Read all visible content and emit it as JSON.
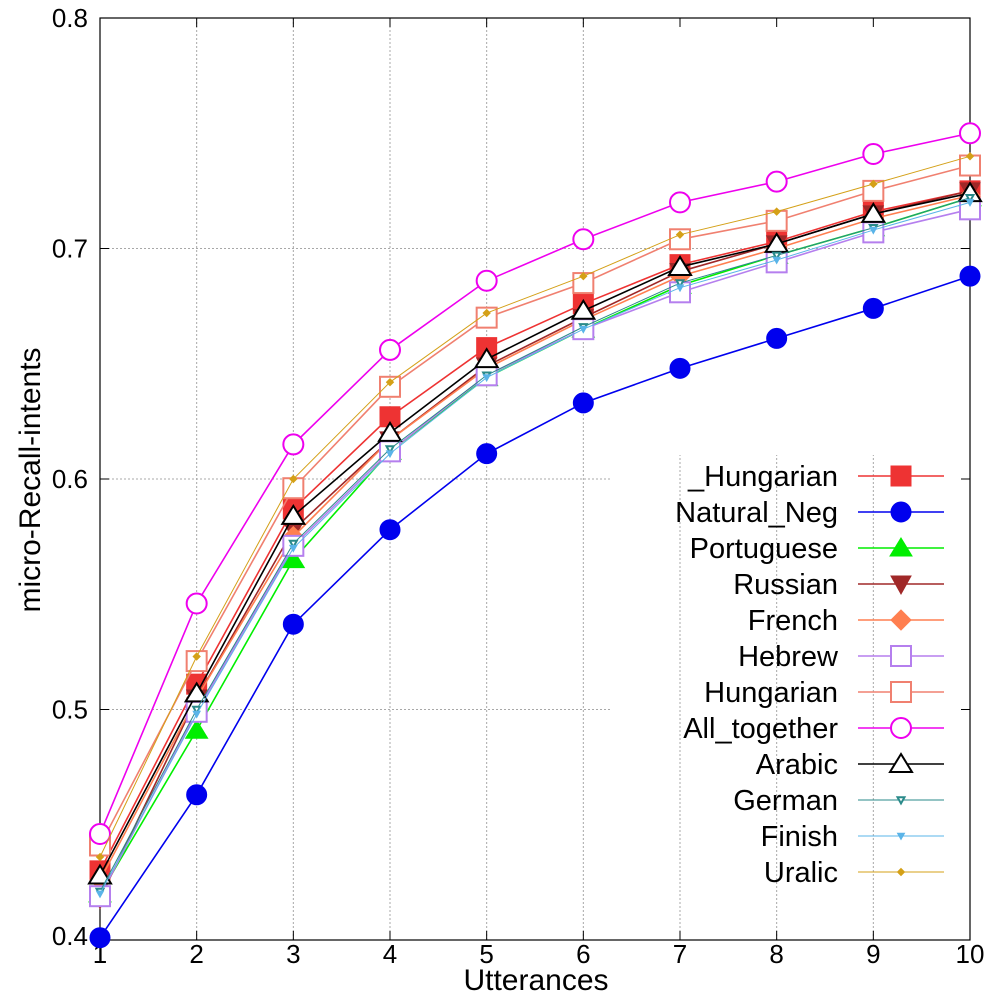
{
  "chart_data": {
    "type": "line",
    "title": "",
    "xlabel": "Utterances",
    "ylabel": "micro-Recall-intents",
    "x": [
      1,
      2,
      3,
      4,
      5,
      6,
      7,
      8,
      9,
      10
    ],
    "xlim": [
      1,
      10
    ],
    "ylim": [
      0.4,
      0.8
    ],
    "xticks": [
      "1",
      "2",
      "3",
      "4",
      "5",
      "6",
      "7",
      "8",
      "9",
      "10"
    ],
    "yticks": [
      "0.4",
      "0.5",
      "0.6",
      "0.7",
      "0.8"
    ],
    "grid": true,
    "legend_position": "bottom-right",
    "series": [
      {
        "name": "_Hungarian",
        "color": "#ee3333",
        "marker": "square-filled",
        "values": [
          0.43,
          0.511,
          0.587,
          0.627,
          0.657,
          0.676,
          0.693,
          0.703,
          0.716,
          0.725
        ]
      },
      {
        "name": "Natural_Neg",
        "color": "#0000ee",
        "marker": "circle-filled",
        "values": [
          0.401,
          0.463,
          0.537,
          0.578,
          0.611,
          0.633,
          0.648,
          0.661,
          0.674,
          0.688
        ]
      },
      {
        "name": "Portuguese",
        "color": "#00ee00",
        "marker": "triangle-filled",
        "values": [
          0.42,
          0.491,
          0.565,
          0.612,
          0.644,
          0.665,
          0.684,
          0.697,
          0.709,
          0.722
        ]
      },
      {
        "name": "Russian",
        "color": "#a02828",
        "marker": "triangle-down-filled",
        "values": [
          0.418,
          0.505,
          0.578,
          0.617,
          0.649,
          0.67,
          0.69,
          0.702,
          0.715,
          0.725
        ]
      },
      {
        "name": "French",
        "color": "#ff7f50",
        "marker": "diamond-filled",
        "values": [
          0.426,
          0.505,
          0.575,
          0.617,
          0.648,
          0.669,
          0.688,
          0.7,
          0.713,
          0.723
        ]
      },
      {
        "name": "Hebrew",
        "color": "#b57fee",
        "marker": "square-open",
        "values": [
          0.419,
          0.499,
          0.571,
          0.612,
          0.645,
          0.665,
          0.681,
          0.694,
          0.707,
          0.717
        ]
      },
      {
        "name": "Hungarian",
        "color": "#f08070",
        "marker": "square-open",
        "values": [
          0.441,
          0.521,
          0.596,
          0.64,
          0.67,
          0.685,
          0.704,
          0.712,
          0.725,
          0.736
        ]
      },
      {
        "name": "All_together",
        "color": "#ee00ee",
        "marker": "circle-open",
        "values": [
          0.446,
          0.546,
          0.615,
          0.656,
          0.686,
          0.704,
          0.72,
          0.729,
          0.741,
          0.75
        ]
      },
      {
        "name": "Arabic",
        "color": "#000000",
        "marker": "triangle-open",
        "values": [
          0.428,
          0.507,
          0.584,
          0.62,
          0.652,
          0.673,
          0.692,
          0.702,
          0.715,
          0.724
        ]
      },
      {
        "name": "German",
        "color": "#2a8a8a",
        "marker": "triangle-down-open-small",
        "values": [
          0.421,
          0.5,
          0.572,
          0.613,
          0.645,
          0.666,
          0.685,
          0.697,
          0.709,
          0.722
        ]
      },
      {
        "name": "Finish",
        "color": "#5ab4e8",
        "marker": "triangle-down-filled-small",
        "values": [
          0.42,
          0.498,
          0.57,
          0.611,
          0.644,
          0.665,
          0.683,
          0.695,
          0.708,
          0.72
        ]
      },
      {
        "name": "Uralic",
        "color": "#d4a017",
        "marker": "diamond-small",
        "values": [
          0.436,
          0.523,
          0.6,
          0.642,
          0.672,
          0.688,
          0.706,
          0.716,
          0.728,
          0.74
        ]
      }
    ]
  }
}
